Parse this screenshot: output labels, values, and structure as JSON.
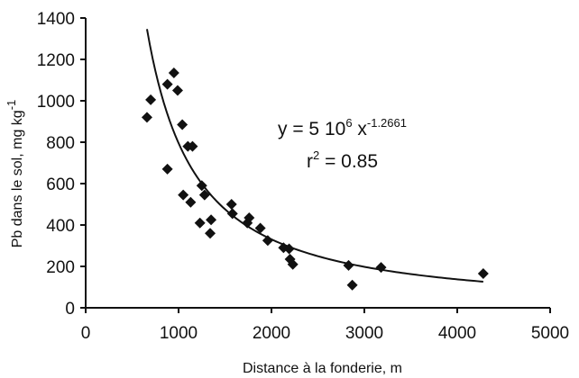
{
  "chart_data": {
    "type": "scatter",
    "xlabel": "Distance à la fonderie, m",
    "ylabel_main": "Pb dans le sol, mg kg",
    "ylabel_sup": "-1",
    "xlim": [
      0,
      5000
    ],
    "ylim": [
      0,
      1400
    ],
    "xticks": [
      0,
      1000,
      2000,
      3000,
      4000,
      5000
    ],
    "yticks": [
      0,
      200,
      400,
      600,
      800,
      1000,
      1200,
      1400
    ],
    "grid": false,
    "series": [
      {
        "points": [
          [
            660,
            920
          ],
          [
            700,
            1005
          ],
          [
            880,
            1080
          ],
          [
            950,
            1135
          ],
          [
            990,
            1050
          ],
          [
            1040,
            885
          ],
          [
            880,
            670
          ],
          [
            1050,
            545
          ],
          [
            1100,
            780
          ],
          [
            1150,
            780
          ],
          [
            1130,
            510
          ],
          [
            1230,
            410
          ],
          [
            1250,
            590
          ],
          [
            1280,
            545
          ],
          [
            1340,
            360
          ],
          [
            1350,
            425
          ],
          [
            1570,
            500
          ],
          [
            1580,
            455
          ],
          [
            1740,
            410
          ],
          [
            1760,
            435
          ],
          [
            1880,
            385
          ],
          [
            1960,
            325
          ],
          [
            2130,
            290
          ],
          [
            2190,
            285
          ],
          [
            2200,
            235
          ],
          [
            2230,
            210
          ],
          [
            2830,
            205
          ],
          [
            2870,
            110
          ],
          [
            3180,
            195
          ],
          [
            4280,
            165
          ]
        ]
      }
    ],
    "fit": {
      "coef": 5000000,
      "exponent": -1.2661,
      "x_range": [
        660,
        4280
      ]
    },
    "annotation": {
      "eq_prefix": "y = 5 10",
      "eq_exp1": "6",
      "eq_mid": " x",
      "eq_exp2": "-1.2661",
      "r2_base": "r",
      "r2_exp": "2",
      "r2_rest": " = 0.85"
    }
  }
}
